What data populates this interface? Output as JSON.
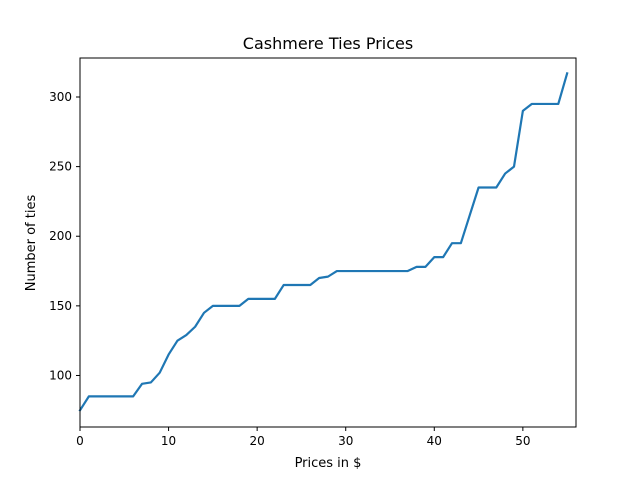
{
  "chart_data": {
    "type": "line",
    "title": "Cashmere Ties Prices",
    "xlabel": "Prices in $",
    "ylabel": "Number of ties",
    "xlim": [
      0,
      56
    ],
    "ylim": [
      63,
      328
    ],
    "x_ticks": [
      0,
      10,
      20,
      30,
      40,
      50
    ],
    "y_ticks": [
      100,
      150,
      200,
      250,
      300
    ],
    "grid": false,
    "legend": "none",
    "series": [
      {
        "color": "#1f77b4",
        "x": [
          0,
          1,
          2,
          3,
          4,
          5,
          6,
          7,
          8,
          9,
          10,
          11,
          12,
          13,
          14,
          15,
          16,
          17,
          18,
          19,
          20,
          21,
          22,
          23,
          24,
          25,
          26,
          27,
          28,
          29,
          30,
          31,
          32,
          33,
          34,
          35,
          36,
          37,
          38,
          39,
          40,
          41,
          42,
          43,
          44,
          45,
          46,
          47,
          48,
          49,
          50,
          51,
          52,
          53,
          54,
          55
        ],
        "y": [
          75,
          85,
          85,
          85,
          85,
          85,
          85,
          94,
          95,
          102,
          115,
          125,
          129,
          135,
          145,
          150,
          150,
          150,
          150,
          155,
          155,
          155,
          155,
          165,
          165,
          165,
          165,
          170,
          171,
          175,
          175,
          175,
          175,
          175,
          175,
          175,
          175,
          175,
          178,
          178,
          185,
          185,
          195,
          195,
          215,
          235,
          235,
          235,
          245,
          250,
          290,
          295,
          295,
          295,
          295,
          317
        ]
      }
    ]
  }
}
